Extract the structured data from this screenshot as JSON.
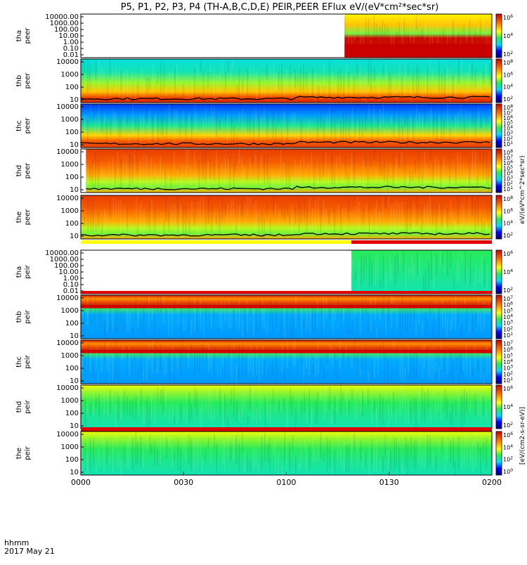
{
  "title": "P5, P1, P2, P3, P4 (TH-A,B,C,D,E) PEIR,PEER EFlux eV/(eV*cm²*sec*sr)",
  "footer": {
    "time_axis_label": "hhmm",
    "date_label": "2017 May 21"
  },
  "colorbar_label_peer": "eV/(eV*cm^2*sec*sr)",
  "colorbar_label_peir": "[eV/(cm2-s-sr-eV)]",
  "chart_data": {
    "type": "heatmap",
    "x_axis": {
      "label": "hhmm",
      "range_minutes": [
        0,
        120
      ],
      "ticks": [
        {
          "minute": 0,
          "label": "0000"
        },
        {
          "minute": 30,
          "label": "0030"
        },
        {
          "minute": 60,
          "label": "0100"
        },
        {
          "minute": 90,
          "label": "0130"
        },
        {
          "minute": 120,
          "label": "0200"
        }
      ]
    },
    "panels": [
      {
        "probe": "tha",
        "species": "peer",
        "y_ticks": [
          "10000.00",
          "1000.00",
          "100.00",
          "10.00",
          "1.00",
          "0.10",
          "0.01"
        ],
        "cbar_ticks": [
          "10^6",
          "10^4",
          "10^2"
        ],
        "data_start_minute": 77,
        "style": "tha_peer",
        "bar": "none"
      },
      {
        "probe": "thb",
        "species": "peer",
        "y_ticks": [
          "10000",
          "1000",
          "100",
          "10"
        ],
        "cbar_ticks": [
          "10^8",
          "10^6",
          "10^4",
          "10^2"
        ],
        "data_start_minute": 0,
        "style": "peer_cool",
        "bar": "none"
      },
      {
        "probe": "thc",
        "species": "peer",
        "y_ticks": [
          "10000",
          "1000",
          "100",
          "10"
        ],
        "cbar_ticks": [
          "10^8",
          "10^7",
          "10^6",
          "10^5",
          "10^4",
          "10^3",
          "10^2",
          "10^1"
        ],
        "data_start_minute": 0,
        "style": "peer_noisy",
        "bar": "none"
      },
      {
        "probe": "thd",
        "species": "peer",
        "y_ticks": [
          "10000",
          "1000",
          "100",
          "10"
        ],
        "cbar_ticks": [
          "10^8",
          "10^7",
          "10^6",
          "10^5",
          "10^4",
          "10^3",
          "10^2",
          "10^1"
        ],
        "data_start_minute": 1.5,
        "style": "peer_hot",
        "bar": "none"
      },
      {
        "probe": "the",
        "species": "peer",
        "y_ticks": [
          "10000",
          "1000",
          "100",
          "10"
        ],
        "cbar_ticks": [
          "10^8",
          "10^6",
          "10^4",
          "10^2"
        ],
        "data_start_minute": 0,
        "style": "peer_hot",
        "bar": "bottom_yellow_red"
      },
      {
        "probe": "tha",
        "species": "peir",
        "y_ticks": [
          "10000.00",
          "1000.00",
          "100.00",
          "10.00",
          "1.00",
          "0.10",
          "0.01"
        ],
        "cbar_ticks": [
          "10^6",
          "10^4",
          "10^2"
        ],
        "data_start_minute": 79,
        "style": "tha_peir",
        "bar": "none"
      },
      {
        "probe": "thb",
        "species": "peir",
        "y_ticks": [
          "10000",
          "1000",
          "100",
          "10"
        ],
        "cbar_ticks": [
          "10^7",
          "10^6",
          "10^5",
          "10^4",
          "10^3",
          "10^2",
          "10^1"
        ],
        "data_start_minute": 0,
        "style": "peir_band",
        "bar": "top_red"
      },
      {
        "probe": "thc",
        "species": "peir",
        "y_ticks": [
          "10000",
          "1000",
          "100",
          "10"
        ],
        "cbar_ticks": [
          "10^7",
          "10^6",
          "10^5",
          "10^4",
          "10^3",
          "10^2",
          "10^1"
        ],
        "data_start_minute": 0,
        "style": "peir_band",
        "bar": "bottom_red"
      },
      {
        "probe": "thd",
        "species": "peir",
        "y_ticks": [
          "10000",
          "1000",
          "100",
          "10"
        ],
        "cbar_ticks": [
          "10^6",
          "10^4",
          "10^2"
        ],
        "data_start_minute": 0,
        "style": "peir_green",
        "bar": "bottom_red"
      },
      {
        "probe": "the",
        "species": "peir",
        "y_ticks": [
          "10000",
          "1000",
          "100",
          "10"
        ],
        "cbar_ticks": [
          "10^6",
          "10^4",
          "10^2",
          "10^0"
        ],
        "data_start_minute": 0,
        "style": "peir_green",
        "bar": "top_red"
      }
    ]
  }
}
